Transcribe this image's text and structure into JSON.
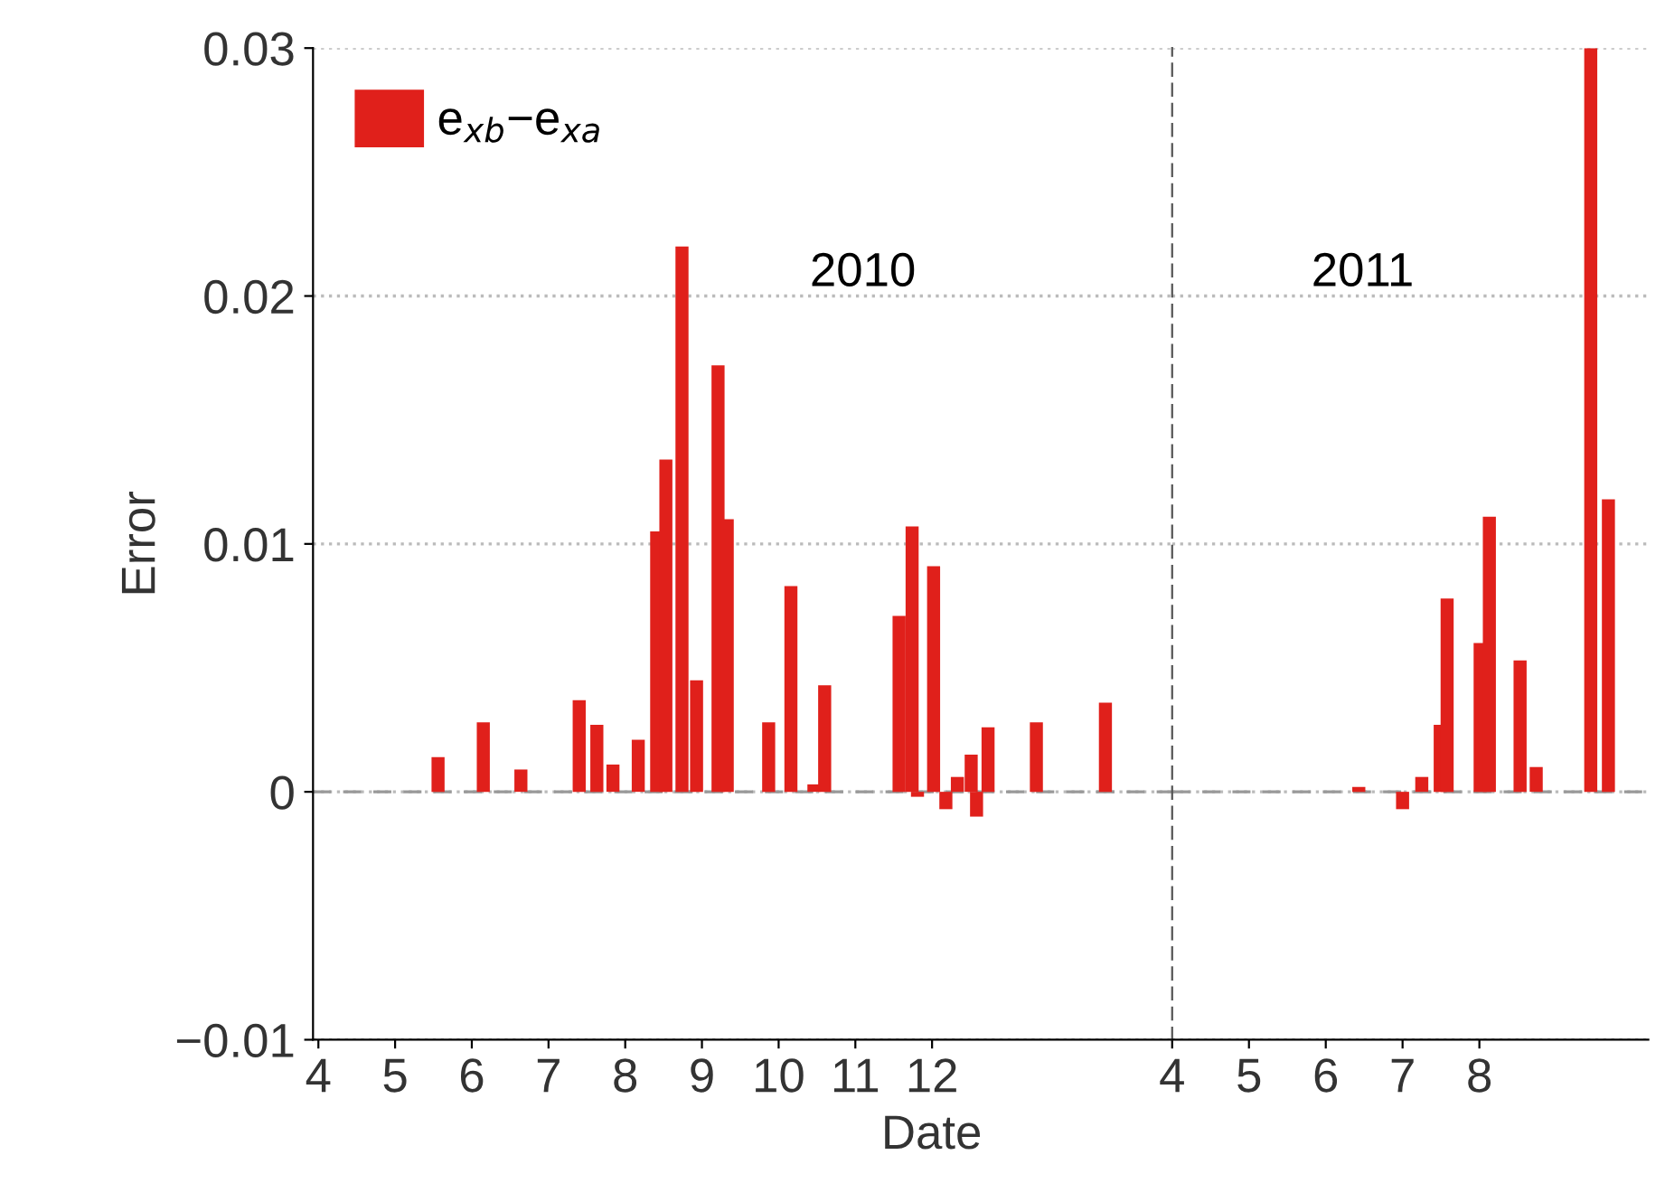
{
  "chart_data": [
    {
      "type": "bar",
      "xlabel": "Date",
      "ylabel": "Error",
      "x": [
        5.56,
        6.15,
        6.64,
        7.4,
        7.63,
        7.84,
        8.17,
        8.41,
        8.53,
        8.74,
        8.93,
        9.21,
        9.33,
        9.87,
        10.16,
        10.46,
        10.6,
        11.57,
        11.74,
        11.81,
        12.02,
        12.18,
        12.33,
        12.51,
        12.58,
        12.73,
        13.36,
        14.26
      ],
      "series": [
        {
          "name": "e$_{xb}$−e$_{xa}$",
          "color": "#e0201b",
          "values": [
            0.0014,
            0.0028,
            0.0009,
            0.0037,
            0.0027,
            0.0011,
            0.0021,
            0.0105,
            0.0134,
            0.022,
            0.0045,
            0.0172,
            0.011,
            0.0028,
            0.0083,
            0.0003,
            0.0043,
            0.0071,
            0.0107,
            -0.0002,
            0.0091,
            -0.0007,
            0.0006,
            0.0015,
            -0.001,
            0.0026,
            0.0028,
            0.0036
          ]
        }
      ],
      "xlim": [
        3.93,
        15.13
      ],
      "xticks": [
        4,
        5,
        6,
        7,
        8,
        9,
        10,
        11,
        12
      ],
      "ylim": [
        -0.01,
        0.03
      ],
      "yticks": [
        {
          "value": -0.01,
          "label": "−0.01"
        },
        0,
        0.01,
        0.02,
        0.03
      ],
      "grid": "y",
      "legend": "top left",
      "ref_lines": [
        {
          "axis": "y",
          "value": 0,
          "color": "#999999",
          "line_style": "dashed"
        }
      ],
      "annotations": [
        "2010"
      ]
    },
    {
      "type": "bar",
      "x": [
        6.43,
        7.0,
        7.25,
        7.49,
        7.58,
        8.01,
        8.13,
        8.53,
        8.74,
        9.45,
        9.68
      ],
      "series": [
        {
          "color": "#e0201b",
          "values": [
            0.0002,
            -0.0007,
            0.0006,
            0.0027,
            0.0078,
            0.006,
            0.0111,
            0.0053,
            0.001,
            0.03,
            0.0118
          ]
        }
      ],
      "xlim": [
        4,
        10.2
      ],
      "xticks": [
        4,
        5,
        6,
        7,
        8
      ],
      "ylim": [
        -0.01,
        0.03
      ],
      "tick_labels": "x",
      "grid": "y",
      "ref_lines": [
        {
          "axis": "y",
          "value": 0,
          "color": "#999999",
          "line_style": "dashed"
        }
      ],
      "annotations": [
        "2011"
      ]
    }
  ]
}
